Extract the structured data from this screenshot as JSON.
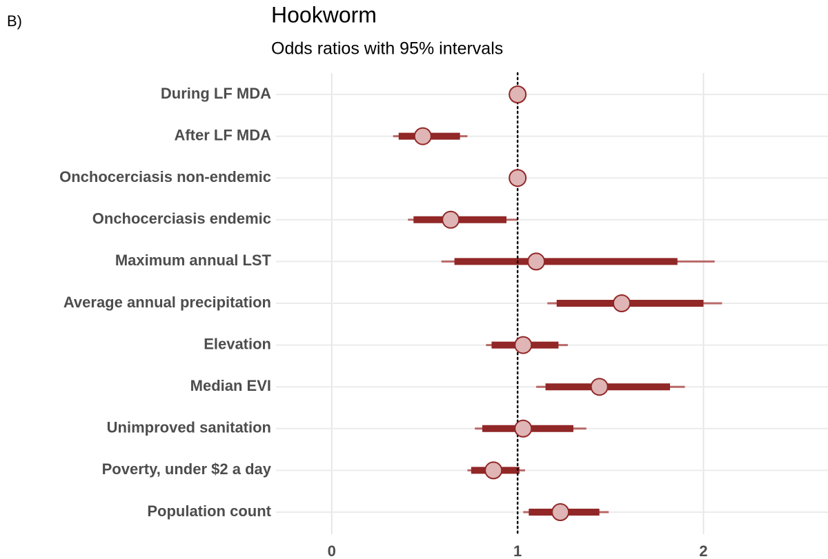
{
  "chart_data": {
    "type": "forest",
    "panel_label": "B)",
    "title": "Hookworm",
    "subtitle": "Odds ratios with 95% intervals",
    "categories": [
      "During LF MDA",
      "After LF MDA",
      "Onchocerciasis non-endemic",
      "Onchocerciasis endemic",
      "Maximum annual LST",
      "Average annual precipitation",
      "Elevation",
      "Median EVI",
      "Unimproved sanitation",
      "Poverty, under $2 a day",
      "Population count"
    ],
    "values": [
      1,
      0.49,
      1,
      0.64,
      1.1,
      1.56,
      1.03,
      1.44,
      1.03,
      0.87,
      1.23
    ],
    "inner_lower": [
      1,
      0.36,
      1,
      0.44,
      0.66,
      1.21,
      0.86,
      1.15,
      0.81,
      0.75,
      1.06
    ],
    "inner_upper": [
      1,
      0.69,
      1,
      0.94,
      1.86,
      2.0,
      1.22,
      1.82,
      1.3,
      1.01,
      1.44
    ],
    "outer_lower": [
      1,
      0.33,
      1,
      0.41,
      0.59,
      1.16,
      0.83,
      1.1,
      0.77,
      0.73,
      1.03
    ],
    "outer_upper": [
      1,
      0.73,
      1,
      1.0,
      2.06,
      2.1,
      1.27,
      1.9,
      1.37,
      1.04,
      1.49
    ],
    "xlim": [
      -0.3,
      2.67
    ],
    "xticks": [
      0,
      1,
      2
    ],
    "reference_line": 1,
    "grid": true,
    "color": "#912727",
    "outer_color": "#b86868",
    "point_fill": "#dfb5b5"
  }
}
